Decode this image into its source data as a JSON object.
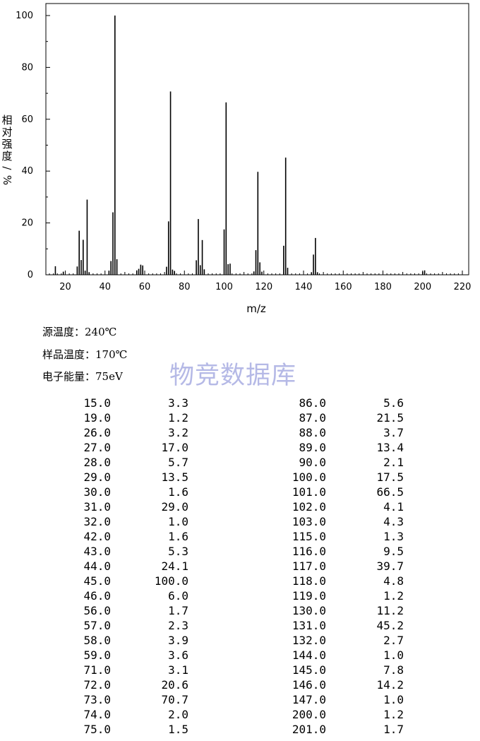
{
  "chart_data": {
    "type": "bar",
    "xlabel": "m/z",
    "ylabel": "相对强度/%",
    "xlim": [
      9,
      224
    ],
    "ylim": [
      0,
      100
    ],
    "x_ticks": [
      "20",
      "40",
      "60",
      "80",
      "100",
      "120",
      "140",
      "160",
      "180",
      "200",
      "220"
    ],
    "y_ticks": [
      "0",
      "20",
      "40",
      "60",
      "80",
      "100"
    ],
    "peaks": [
      [
        15.0,
        3.3
      ],
      [
        19.0,
        1.2
      ],
      [
        26.0,
        3.2
      ],
      [
        27.0,
        17.0
      ],
      [
        28.0,
        5.7
      ],
      [
        29.0,
        13.5
      ],
      [
        30.0,
        1.6
      ],
      [
        31.0,
        29.0
      ],
      [
        32.0,
        1.0
      ],
      [
        42.0,
        1.6
      ],
      [
        43.0,
        5.3
      ],
      [
        44.0,
        24.1
      ],
      [
        45.0,
        100.0
      ],
      [
        46.0,
        6.0
      ],
      [
        56.0,
        1.7
      ],
      [
        57.0,
        2.3
      ],
      [
        58.0,
        3.9
      ],
      [
        59.0,
        3.6
      ],
      [
        71.0,
        3.1
      ],
      [
        72.0,
        20.6
      ],
      [
        73.0,
        70.7
      ],
      [
        74.0,
        2.0
      ],
      [
        75.0,
        1.5
      ],
      [
        86.0,
        5.6
      ],
      [
        87.0,
        21.5
      ],
      [
        88.0,
        3.7
      ],
      [
        89.0,
        13.4
      ],
      [
        90.0,
        2.1
      ],
      [
        100.0,
        17.5
      ],
      [
        101.0,
        66.5
      ],
      [
        102.0,
        4.1
      ],
      [
        103.0,
        4.3
      ],
      [
        115.0,
        1.3
      ],
      [
        116.0,
        9.5
      ],
      [
        117.0,
        39.7
      ],
      [
        118.0,
        4.8
      ],
      [
        119.0,
        1.2
      ],
      [
        130.0,
        11.2
      ],
      [
        131.0,
        45.2
      ],
      [
        132.0,
        2.7
      ],
      [
        144.0,
        1.0
      ],
      [
        145.0,
        7.8
      ],
      [
        146.0,
        14.2
      ],
      [
        147.0,
        1.0
      ],
      [
        200.0,
        1.2
      ],
      [
        201.0,
        1.7
      ]
    ]
  },
  "conditions": {
    "source_temp": "源温度：240℃",
    "sample_temp": "样品温度：170℃",
    "electron_energy": "电子能量：75eV"
  },
  "watermark": "物竞数据库",
  "table": {
    "left": [
      [
        "15.0",
        "3.3"
      ],
      [
        "19.0",
        "1.2"
      ],
      [
        "26.0",
        "3.2"
      ],
      [
        "27.0",
        "17.0"
      ],
      [
        "28.0",
        "5.7"
      ],
      [
        "29.0",
        "13.5"
      ],
      [
        "30.0",
        "1.6"
      ],
      [
        "31.0",
        "29.0"
      ],
      [
        "32.0",
        "1.0"
      ],
      [
        "42.0",
        "1.6"
      ],
      [
        "43.0",
        "5.3"
      ],
      [
        "44.0",
        "24.1"
      ],
      [
        "45.0",
        "100.0"
      ],
      [
        "46.0",
        "6.0"
      ],
      [
        "56.0",
        "1.7"
      ],
      [
        "57.0",
        "2.3"
      ],
      [
        "58.0",
        "3.9"
      ],
      [
        "59.0",
        "3.6"
      ],
      [
        "71.0",
        "3.1"
      ],
      [
        "72.0",
        "20.6"
      ],
      [
        "73.0",
        "70.7"
      ],
      [
        "74.0",
        "2.0"
      ],
      [
        "75.0",
        "1.5"
      ]
    ],
    "right": [
      [
        "86.0",
        "5.6"
      ],
      [
        "87.0",
        "21.5"
      ],
      [
        "88.0",
        "3.7"
      ],
      [
        "89.0",
        "13.4"
      ],
      [
        "90.0",
        "2.1"
      ],
      [
        "100.0",
        "17.5"
      ],
      [
        "101.0",
        "66.5"
      ],
      [
        "102.0",
        "4.1"
      ],
      [
        "103.0",
        "4.3"
      ],
      [
        "115.0",
        "1.3"
      ],
      [
        "116.0",
        "9.5"
      ],
      [
        "117.0",
        "39.7"
      ],
      [
        "118.0",
        "4.8"
      ],
      [
        "119.0",
        "1.2"
      ],
      [
        "130.0",
        "11.2"
      ],
      [
        "131.0",
        "45.2"
      ],
      [
        "132.0",
        "2.7"
      ],
      [
        "144.0",
        "1.0"
      ],
      [
        "145.0",
        "7.8"
      ],
      [
        "146.0",
        "14.2"
      ],
      [
        "147.0",
        "1.0"
      ],
      [
        "200.0",
        "1.2"
      ],
      [
        "201.0",
        "1.7"
      ]
    ]
  }
}
